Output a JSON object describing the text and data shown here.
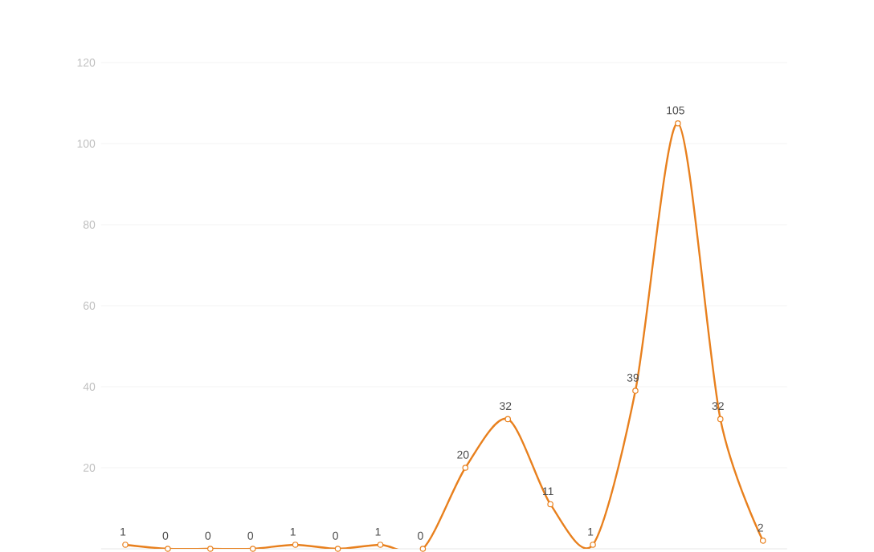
{
  "chart_data": {
    "type": "line",
    "categories": [
      null,
      null,
      null,
      null,
      null,
      null,
      null,
      null,
      null,
      null,
      null,
      null,
      null,
      null,
      null,
      null
    ],
    "series": [
      {
        "color": "#e8801e",
        "values": [
          1,
          0,
          0,
          0,
          1,
          0,
          1,
          0,
          20,
          32,
          11,
          1,
          39,
          105,
          32,
          2
        ]
      }
    ],
    "ylim": [
      0,
      120
    ],
    "yticks": [
      20,
      40,
      60,
      80,
      100,
      120
    ],
    "grid": "y",
    "data_labels": true,
    "marker": "circle",
    "tick_labels": "y"
  }
}
